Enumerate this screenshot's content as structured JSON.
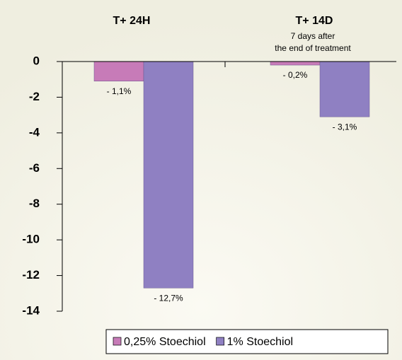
{
  "chart_data": {
    "type": "bar",
    "categories": [
      "T+ 24H",
      "T+ 14D"
    ],
    "annotations": [
      "7 days after",
      "the end of treatment"
    ],
    "series": [
      {
        "name": "0,25% Stoechiol",
        "color": "#c77bb8",
        "values": [
          -1.1,
          -0.2
        ],
        "value_labels": [
          "- 1,1%",
          "- 0,2%"
        ]
      },
      {
        "name": "1% Stoechiol",
        "color": "#8f80c2",
        "values": [
          -12.7,
          -3.1
        ],
        "value_labels": [
          "- 12,7%",
          "- 3,1%"
        ]
      }
    ],
    "ylim": [
      -14,
      0
    ],
    "yticks": [
      0,
      -2,
      -4,
      -6,
      -8,
      -10,
      -12,
      -14
    ],
    "grid": false
  }
}
